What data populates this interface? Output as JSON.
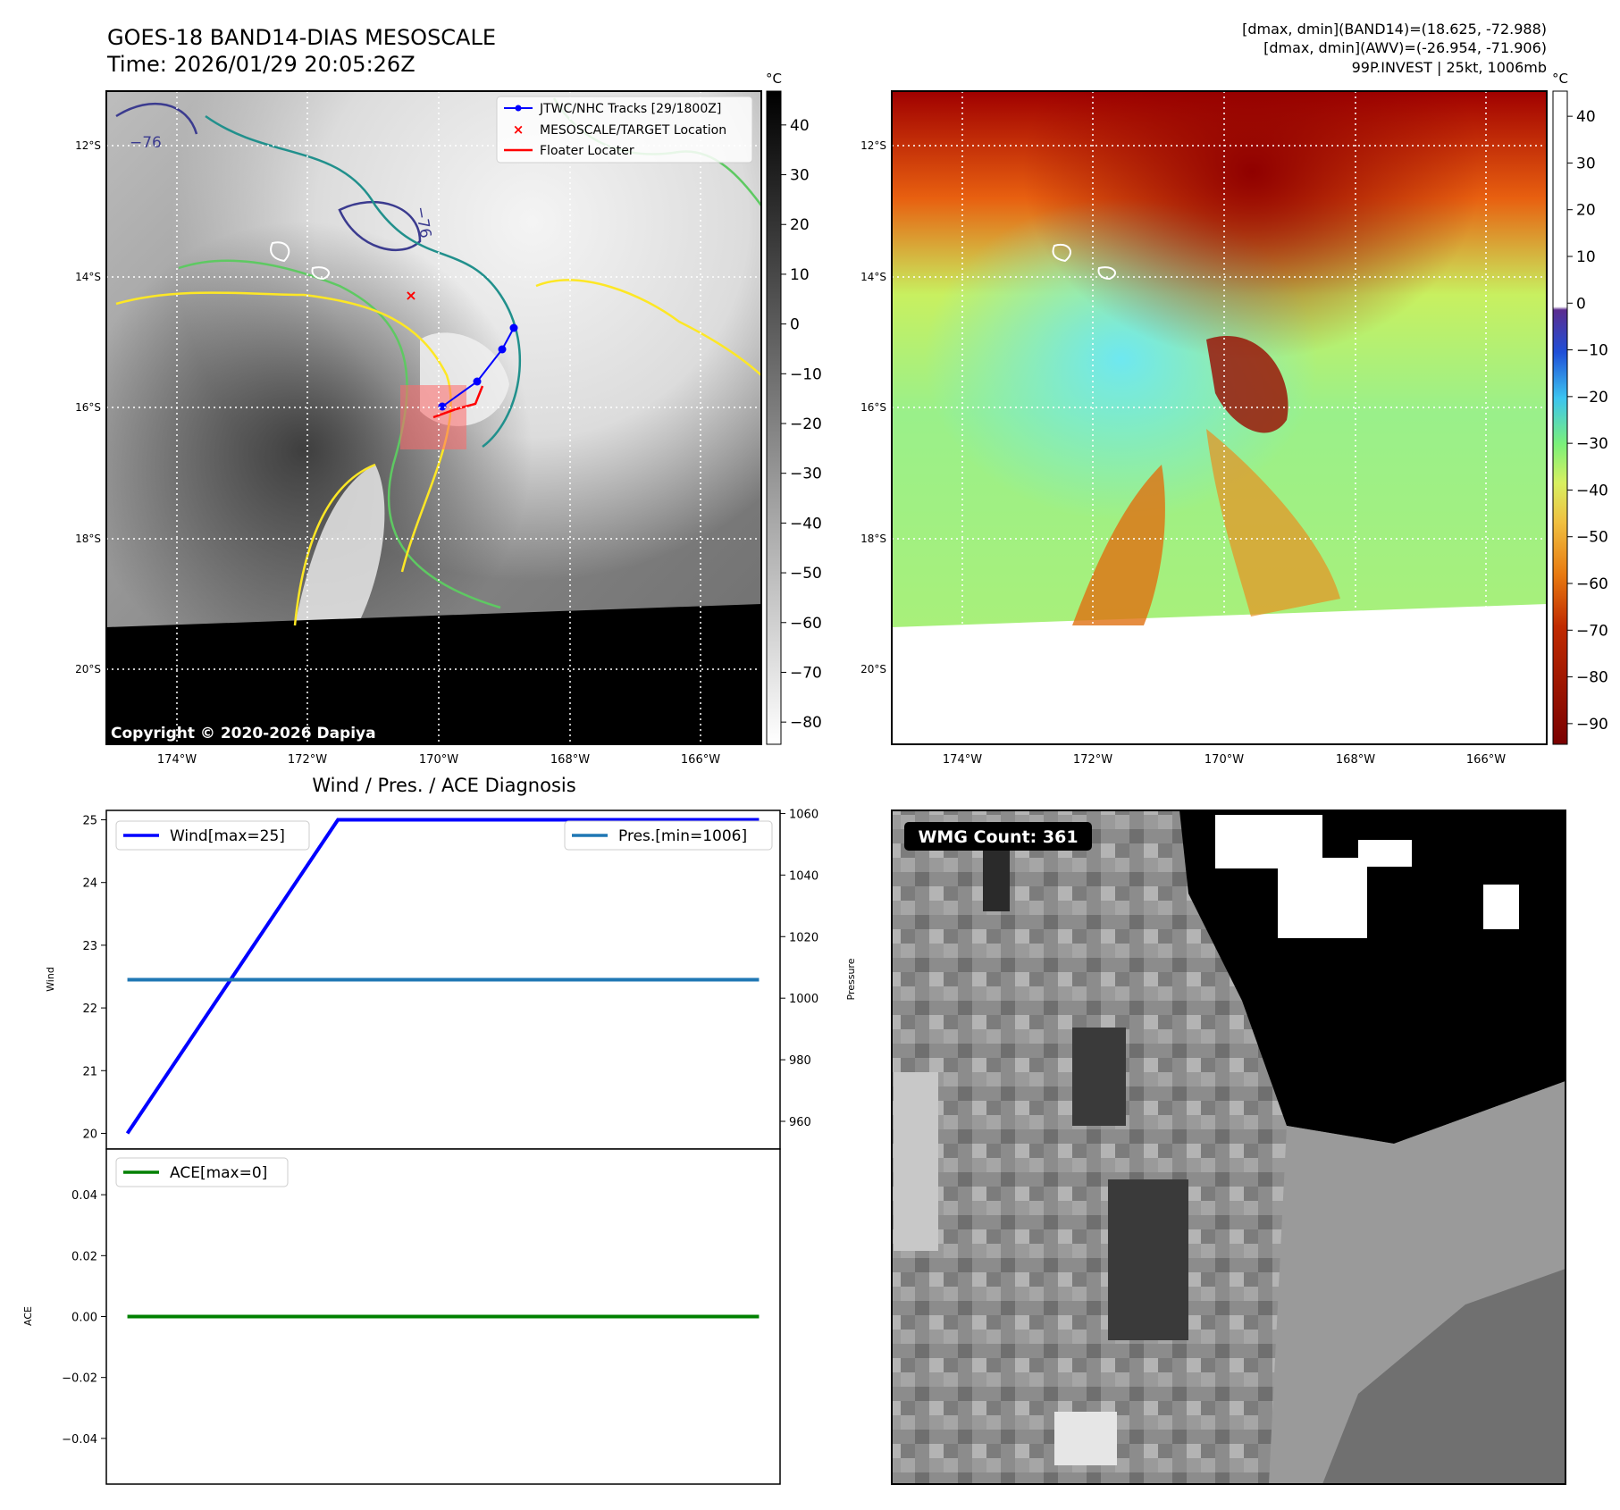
{
  "header": {
    "title_line1": "GOES-18 BAND14-DIAS MESOSCALE",
    "title_line2": "Time: 2026/01/29 20:05:26Z",
    "info_line1": "[dmax, dmin](BAND14)=(18.625, -72.988)",
    "info_line2": "[dmax, dmin](AWV)=(-26.954, -71.906)",
    "info_line3": "99P.INVEST | 25kt, 1006mb"
  },
  "map_axes": {
    "lat_labels": [
      "12°S",
      "14°S",
      "16°S",
      "18°S",
      "20°S"
    ],
    "lon_labels": [
      "174°W",
      "172°W",
      "170°W",
      "168°W",
      "166°W"
    ]
  },
  "ir_panel": {
    "legend": [
      {
        "label": "JTWC/NHC Tracks [29/1800Z]",
        "color": "#0000ff"
      },
      {
        "label": "MESOSCALE/TARGET Location",
        "color": "#ff0000"
      },
      {
        "label": "Floater Locater",
        "color": "#ff0000"
      }
    ],
    "colorbar_unit": "°C",
    "colorbar_ticks": [
      "40",
      "30",
      "20",
      "10",
      "0",
      "−10",
      "−20",
      "−30",
      "−40",
      "−50",
      "−60",
      "−70",
      "−80"
    ],
    "contour_label_1": "−76",
    "contour_label_2": "−76",
    "copyright": "Copyright © 2020-2026 Dapiya",
    "contour_colors": {
      "cold": "#3b3b8f",
      "mid": "#21908c",
      "warm": "#5ec962",
      "edge": "#fde725"
    }
  },
  "awv_panel": {
    "colorbar_unit": "°C",
    "colorbar_ticks": [
      "40",
      "30",
      "20",
      "10",
      "0",
      "−10",
      "−20",
      "−30",
      "−40",
      "−50",
      "−60",
      "−70",
      "−80",
      "−90"
    ]
  },
  "wmg_panel": {
    "badge": "WMG Count: 361"
  },
  "chart_data": [
    {
      "type": "line",
      "title": "Wind / Pres. / ACE Diagnosis",
      "ylabel": "Wind",
      "ylim": [
        19.75,
        25.15
      ],
      "yticks": [
        "25",
        "24",
        "23",
        "22",
        "21",
        "20"
      ],
      "x": [
        0,
        1,
        2,
        3
      ],
      "xlim": [
        -0.1,
        3.1
      ],
      "series": [
        {
          "name": "Wind[max=25]",
          "color": "#0000ff",
          "values": [
            20,
            25,
            25,
            25
          ]
        }
      ]
    },
    {
      "type": "line",
      "ylabel": "Pressure",
      "ylim": [
        951,
        1061
      ],
      "yticks": [
        "1060",
        "1040",
        "1020",
        "1000",
        "980",
        "960"
      ],
      "x": [
        0,
        1,
        2,
        3
      ],
      "xlim": [
        -0.1,
        3.1
      ],
      "series": [
        {
          "name": "Pres.[min=1006]",
          "color": "#1f77b4",
          "values": [
            1006,
            1006,
            1006,
            1006
          ]
        }
      ]
    },
    {
      "type": "line",
      "ylabel": "ACE",
      "ylim": [
        -0.055,
        0.055
      ],
      "yticks": [
        "0.04",
        "0.02",
        "0.00",
        "−0.02",
        "−0.04"
      ],
      "x": [
        0,
        1,
        2,
        3
      ],
      "xlim": [
        -0.1,
        3.1
      ],
      "series": [
        {
          "name": "ACE[max=0]",
          "color": "#008000",
          "values": [
            0,
            0,
            0,
            0
          ]
        }
      ]
    }
  ]
}
